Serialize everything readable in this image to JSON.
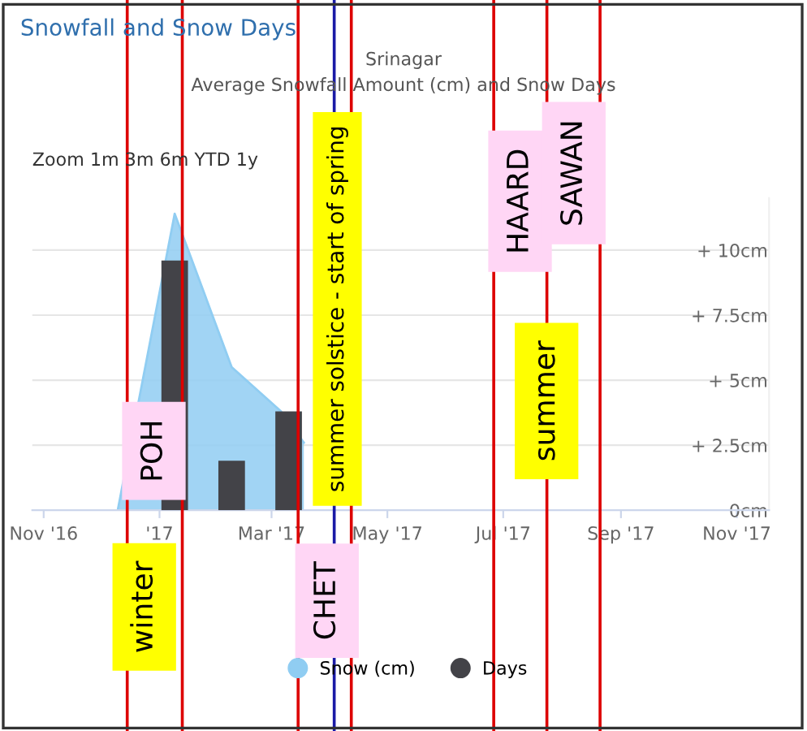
{
  "chart_data": {
    "type": "area",
    "title": "Snowfall and Snow Days",
    "subtitle": "Srinagar\nAverage Snowfall Amount (cm) and Snow Days",
    "series": [
      {
        "name": "Snow (cm)",
        "color": "#90cdf2",
        "x": [
          "2016-12-10",
          "2017-01-09",
          "2017-02-08",
          "2017-03-06",
          "2017-03-18"
        ],
        "values": [
          0,
          11.4,
          5.5,
          3.8,
          2.6
        ]
      },
      {
        "name": "Days",
        "type": "bar",
        "color": "#434348",
        "x": [
          "2017-01-09",
          "2017-02-08",
          "2017-03-10"
        ],
        "values": [
          9.6,
          1.9,
          3.8
        ]
      }
    ],
    "xlim": [
      "2016-10-26",
      "2017-11-18"
    ],
    "xticks": [
      {
        "value": "2016-11-01",
        "label": "Nov '16"
      },
      {
        "value": "2017-01-01",
        "label": "'17"
      },
      {
        "value": "2017-03-01",
        "label": "Mar '17"
      },
      {
        "value": "2017-05-01",
        "label": "May '17"
      },
      {
        "value": "2017-07-01",
        "label": "Jul '17"
      },
      {
        "value": "2017-09-01",
        "label": "Sep '17"
      },
      {
        "value": "2017-11-01",
        "label": "Nov '17"
      }
    ],
    "ylim": [
      0,
      12
    ],
    "yticks": [
      {
        "value": 0,
        "label": "0cm"
      },
      {
        "value": 2.5,
        "label": "+ 2.5cm"
      },
      {
        "value": 5,
        "label": "+ 5cm"
      },
      {
        "value": 7.5,
        "label": "+ 7.5cm"
      },
      {
        "value": 10,
        "label": "+ 10cm"
      }
    ],
    "grid": "y",
    "legend": "bottom",
    "ref_lines": [
      {
        "axis": "x",
        "value": "2016-12-15",
        "color": "#dd0000"
      },
      {
        "axis": "x",
        "value": "2017-01-13",
        "color": "#dd0000"
      },
      {
        "axis": "x",
        "value": "2017-03-15",
        "color": "#dd0000"
      },
      {
        "axis": "x",
        "value": "2017-04-03",
        "color": "#1a1aa6"
      },
      {
        "axis": "x",
        "value": "2017-04-12",
        "color": "#dd0000"
      },
      {
        "axis": "x",
        "value": "2017-06-26",
        "color": "#dd0000"
      },
      {
        "axis": "x",
        "value": "2017-07-24",
        "color": "#dd0000"
      },
      {
        "axis": "x",
        "value": "2017-08-21",
        "color": "#dd0000"
      }
    ],
    "annotations": [
      "POH",
      "winter",
      "summer solstice - start of spring",
      "CHET",
      "HAARD",
      "SAWAN",
      "summer",
      "Zoom 1m 3m 6m YTD 1y"
    ]
  }
}
